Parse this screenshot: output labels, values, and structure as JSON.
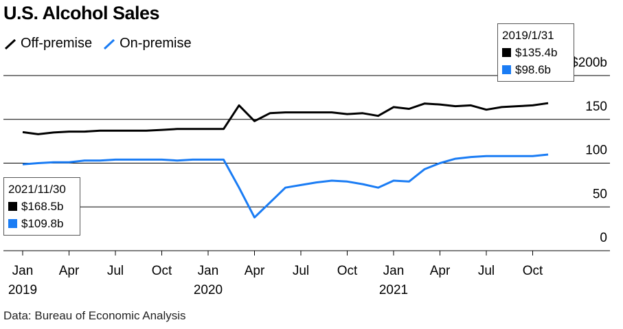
{
  "title": "U.S. Alcohol Sales",
  "source": "Data: Bureau of Economic Analysis",
  "legend": [
    {
      "label": "Off-premise",
      "color": "#000000"
    },
    {
      "label": "On-premise",
      "color": "#1a7cf4"
    }
  ],
  "tooltip_right": {
    "date": "2019/1/31",
    "off_value": "$135.4b",
    "on_value": "$98.6b"
  },
  "tooltip_left": {
    "date": "2021/11/30",
    "off_value": "$168.5b",
    "on_value": "$109.8b"
  },
  "chart_data": {
    "type": "line",
    "title": "U.S. Alcohol Sales",
    "ylim": [
      0,
      200
    ],
    "y_ticks": [
      {
        "value": 0,
        "label": "0"
      },
      {
        "value": 50,
        "label": "50"
      },
      {
        "value": 100,
        "label": "100"
      },
      {
        "value": 150,
        "label": "150"
      },
      {
        "value": 200,
        "label": "$200b"
      }
    ],
    "x_ticks": [
      {
        "month": 0,
        "label": "Jan",
        "year": "2019"
      },
      {
        "month": 3,
        "label": "Apr",
        "year": ""
      },
      {
        "month": 6,
        "label": "Jul",
        "year": ""
      },
      {
        "month": 9,
        "label": "Oct",
        "year": ""
      },
      {
        "month": 12,
        "label": "Jan",
        "year": "2020"
      },
      {
        "month": 15,
        "label": "Apr",
        "year": ""
      },
      {
        "month": 18,
        "label": "Jul",
        "year": ""
      },
      {
        "month": 21,
        "label": "Oct",
        "year": ""
      },
      {
        "month": 24,
        "label": "Jan",
        "year": "2021"
      },
      {
        "month": 27,
        "label": "Apr",
        "year": ""
      },
      {
        "month": 30,
        "label": "Jul",
        "year": ""
      },
      {
        "month": 33,
        "label": "Oct",
        "year": ""
      }
    ],
    "x": [
      "2019-01",
      "2019-02",
      "2019-03",
      "2019-04",
      "2019-05",
      "2019-06",
      "2019-07",
      "2019-08",
      "2019-09",
      "2019-10",
      "2019-11",
      "2019-12",
      "2020-01",
      "2020-02",
      "2020-03",
      "2020-04",
      "2020-05",
      "2020-06",
      "2020-07",
      "2020-08",
      "2020-09",
      "2020-10",
      "2020-11",
      "2020-12",
      "2021-01",
      "2021-02",
      "2021-03",
      "2021-04",
      "2021-05",
      "2021-06",
      "2021-07",
      "2021-08",
      "2021-09",
      "2021-10",
      "2021-11"
    ],
    "series": [
      {
        "name": "Off-premise",
        "color": "#000000",
        "values": [
          135.4,
          133,
          135,
          136,
          136,
          137,
          137,
          137,
          137,
          138,
          139,
          139,
          139,
          139,
          166,
          148,
          157,
          158,
          158,
          158,
          158,
          156,
          157,
          154,
          164,
          162,
          168,
          167,
          165,
          166,
          161,
          164,
          165,
          166,
          168.5
        ]
      },
      {
        "name": "On-premise",
        "color": "#1a7cf4",
        "values": [
          98.6,
          100,
          101,
          101,
          103,
          103,
          104,
          104,
          104,
          104,
          103,
          104,
          104,
          104,
          72,
          38,
          55,
          72,
          75,
          78,
          80,
          79,
          76,
          72,
          80,
          79,
          93,
          100,
          105,
          107,
          108,
          108,
          108,
          108,
          109.8
        ]
      }
    ]
  }
}
